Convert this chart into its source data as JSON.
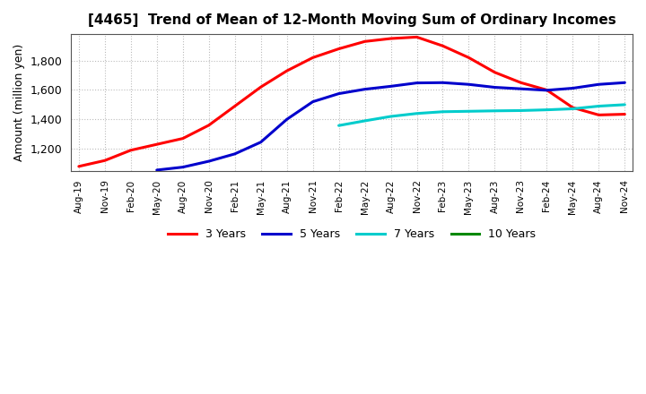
{
  "title": "[4465]  Trend of Mean of 12-Month Moving Sum of Ordinary Incomes",
  "ylabel": "Amount (million yen)",
  "background_color": "#ffffff",
  "grid_color": "#aaaaaa",
  "x_labels": [
    "Aug-19",
    "Nov-19",
    "Feb-20",
    "May-20",
    "Aug-20",
    "Nov-20",
    "Feb-21",
    "May-21",
    "Aug-21",
    "Nov-21",
    "Feb-22",
    "May-22",
    "Aug-22",
    "Nov-22",
    "Feb-23",
    "May-23",
    "Aug-23",
    "Nov-23",
    "Feb-24",
    "May-24",
    "Aug-24",
    "Nov-24"
  ],
  "ylim": [
    1050,
    1980
  ],
  "yticks": [
    1200,
    1400,
    1600,
    1800
  ],
  "series": {
    "3 Years": {
      "color": "#ff0000",
      "data_x": [
        0,
        1,
        2,
        3,
        4,
        5,
        6,
        7,
        8,
        9,
        10,
        11,
        12,
        13,
        14,
        15,
        16,
        17,
        18,
        19,
        20,
        21
      ],
      "data_y": [
        1080,
        1120,
        1190,
        1230,
        1270,
        1360,
        1490,
        1620,
        1730,
        1820,
        1880,
        1930,
        1950,
        1960,
        1900,
        1820,
        1720,
        1650,
        1600,
        1480,
        1430,
        1435
      ]
    },
    "5 Years": {
      "color": "#0000cc",
      "data_x": [
        3,
        4,
        5,
        6,
        7,
        8,
        9,
        10,
        11,
        12,
        13,
        14,
        15,
        16,
        17,
        18,
        19,
        20,
        21
      ],
      "data_y": [
        1055,
        1075,
        1115,
        1165,
        1245,
        1400,
        1520,
        1575,
        1605,
        1625,
        1648,
        1650,
        1638,
        1618,
        1608,
        1598,
        1612,
        1638,
        1650
      ]
    },
    "7 Years": {
      "color": "#00cccc",
      "data_x": [
        10,
        11,
        12,
        13,
        14,
        15,
        16,
        17,
        18,
        19,
        20,
        21
      ],
      "data_y": [
        1358,
        1390,
        1420,
        1440,
        1452,
        1455,
        1458,
        1460,
        1465,
        1472,
        1490,
        1500
      ]
    },
    "10 Years": {
      "color": "#008800",
      "data_x": [],
      "data_y": []
    }
  },
  "legend_labels": [
    "3 Years",
    "5 Years",
    "7 Years",
    "10 Years"
  ],
  "legend_colors": [
    "#ff0000",
    "#0000cc",
    "#00cccc",
    "#008800"
  ]
}
